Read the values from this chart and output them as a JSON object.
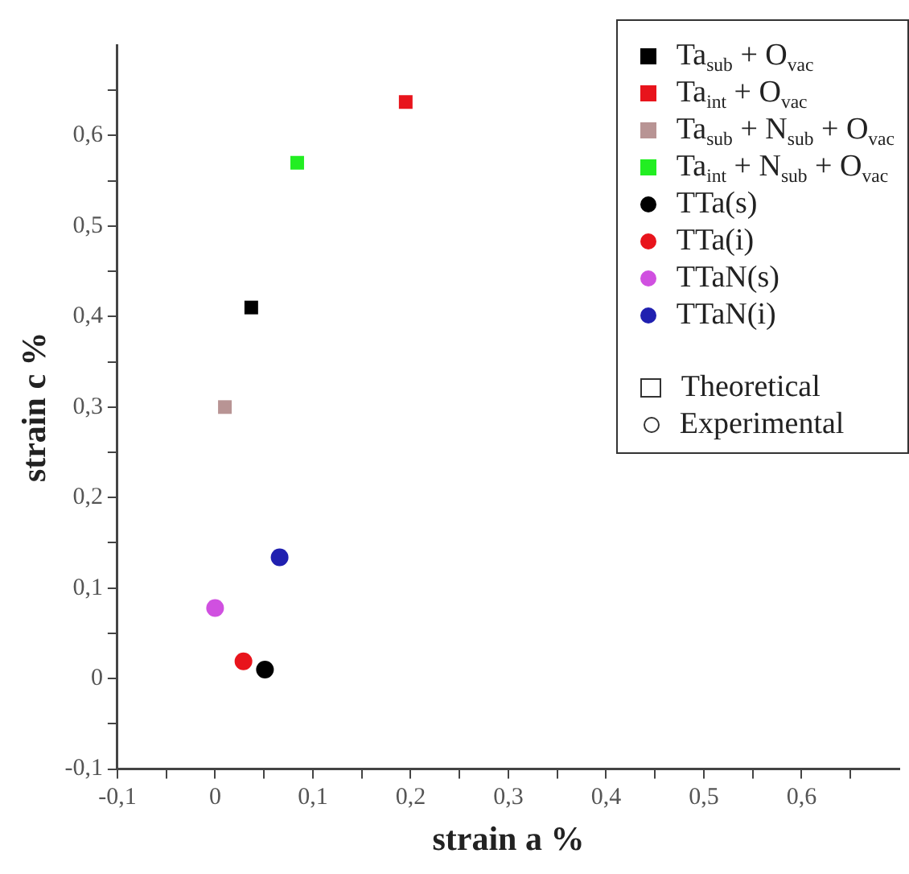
{
  "chart_data": {
    "type": "scatter",
    "xlabel": "strain a %",
    "ylabel": "strain c %",
    "xlim": [
      -0.1,
      0.7
    ],
    "ylim": [
      -0.1,
      0.7
    ],
    "xticks": [
      {
        "value": -0.1,
        "label": "-0,1"
      },
      {
        "value": -0.05,
        "label": null
      },
      0,
      {
        "value": 0.05,
        "label": null
      },
      {
        "value": 0.1,
        "label": "0,1"
      },
      {
        "value": 0.15,
        "label": null
      },
      {
        "value": 0.2,
        "label": "0,2"
      },
      {
        "value": 0.25,
        "label": null
      },
      {
        "value": 0.3,
        "label": "0,3"
      },
      {
        "value": 0.35,
        "label": null
      },
      {
        "value": 0.4,
        "label": "0,4"
      },
      {
        "value": 0.45,
        "label": null
      },
      {
        "value": 0.5,
        "label": "0,5"
      },
      {
        "value": 0.55,
        "label": null
      },
      {
        "value": 0.6,
        "label": "0,6"
      },
      {
        "value": 0.65,
        "label": null
      }
    ],
    "yticks": [
      {
        "value": -0.1,
        "label": "-0,1"
      },
      {
        "value": -0.05,
        "label": null
      },
      0,
      {
        "value": 0.05,
        "label": null
      },
      {
        "value": 0.1,
        "label": "0,1"
      },
      {
        "value": 0.15,
        "label": null
      },
      {
        "value": 0.2,
        "label": "0,2"
      },
      {
        "value": 0.25,
        "label": null
      },
      {
        "value": 0.3,
        "label": "0,3"
      },
      {
        "value": 0.35,
        "label": null
      },
      {
        "value": 0.4,
        "label": "0,4"
      },
      {
        "value": 0.45,
        "label": null
      },
      {
        "value": 0.5,
        "label": "0,5"
      },
      {
        "value": 0.55,
        "label": null
      },
      {
        "value": 0.6,
        "label": "0,6"
      },
      {
        "value": 0.65,
        "label": null
      }
    ],
    "grid": false,
    "legend": "top right",
    "annotations": [
      "Theoretical",
      "Experimental"
    ],
    "series": [
      {
        "name": "Ta$_{sub}$ + O$_{vac}$",
        "color": "#000000",
        "marker": "square",
        "x": [
          0.037
        ],
        "values": [
          0.41
        ]
      },
      {
        "name": "Ta$_{int}$ + O$_{vac}$",
        "color": "#e8141c",
        "marker": "square",
        "x": [
          0.195
        ],
        "values": [
          0.637
        ]
      },
      {
        "name": "Ta$_{sub}$ + N$_{sub}$ + O$_{vac}$",
        "color": "#b89494",
        "marker": "square",
        "x": [
          0.01
        ],
        "values": [
          0.3
        ]
      },
      {
        "name": "Ta$_{int}$ + N$_{sub}$ + O$_{vac}$",
        "color": "#22ee22",
        "marker": "square",
        "x": [
          0.084
        ],
        "values": [
          0.57
        ]
      },
      {
        "name": "TTa(s)",
        "color": "#000000",
        "marker": "circle",
        "x": [
          0.051
        ],
        "values": [
          0.01
        ]
      },
      {
        "name": "TTa(i)",
        "color": "#e8141c",
        "marker": "circle",
        "x": [
          0.029
        ],
        "values": [
          0.019
        ]
      },
      {
        "name": "TTaN(s)",
        "color": "#d050e0",
        "marker": "circle",
        "x": [
          0.0
        ],
        "values": [
          0.078
        ]
      },
      {
        "name": "TTaN(i)",
        "color": "#2020b0",
        "marker": "circle",
        "x": [
          0.066
        ],
        "values": [
          0.134
        ]
      }
    ]
  }
}
